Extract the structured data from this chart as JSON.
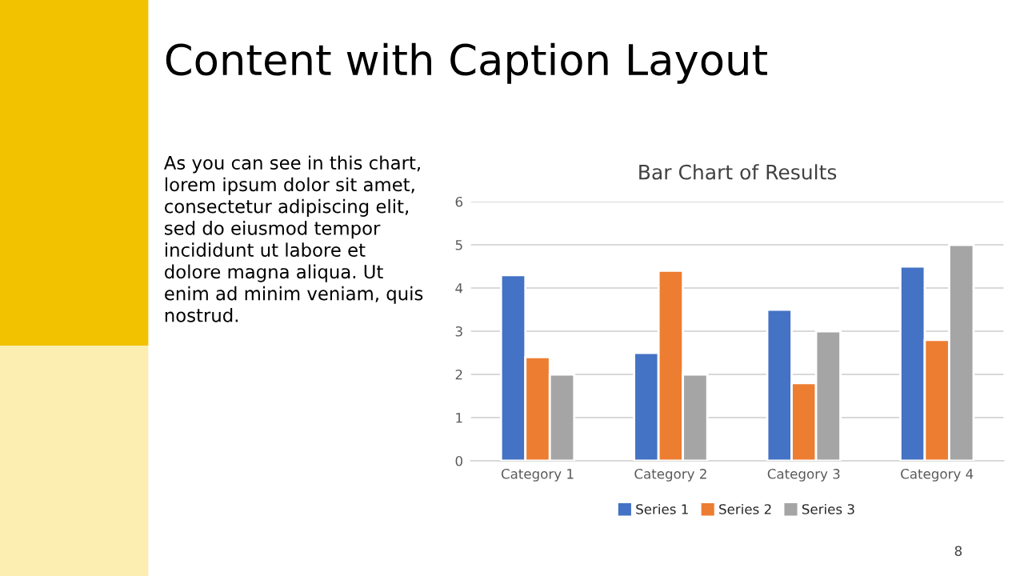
{
  "chart_data": {
    "type": "bar",
    "title": "Bar Chart of Results",
    "categories": [
      "Category 1",
      "Category 2",
      "Category 3",
      "Category 4"
    ],
    "series": [
      {
        "name": "Series 1",
        "color": "#4472c4",
        "values": [
          4.3,
          2.5,
          3.5,
          4.5
        ]
      },
      {
        "name": "Series 2",
        "color": "#ed7d31",
        "values": [
          2.4,
          4.4,
          1.8,
          2.8
        ]
      },
      {
        "name": "Series 3",
        "color": "#a5a5a5",
        "values": [
          2,
          2,
          3,
          5
        ]
      }
    ],
    "ylim": [
      0,
      6
    ],
    "yticks": [
      0,
      1,
      2,
      3,
      4,
      5,
      6
    ],
    "grid": "y",
    "legend": "bottom",
    "annotations": [
      "Content with Caption Layout",
      "As you can see in this chart,\nlorem ipsum dolor sit amet,\nconsectetur adipiscing elit,\nsed do eiusmod tempor\nincididunt ut labore et\ndolore magna aliqua. Ut\nenim ad minim veniam, quis\nnostrud.",
      "8"
    ]
  }
}
